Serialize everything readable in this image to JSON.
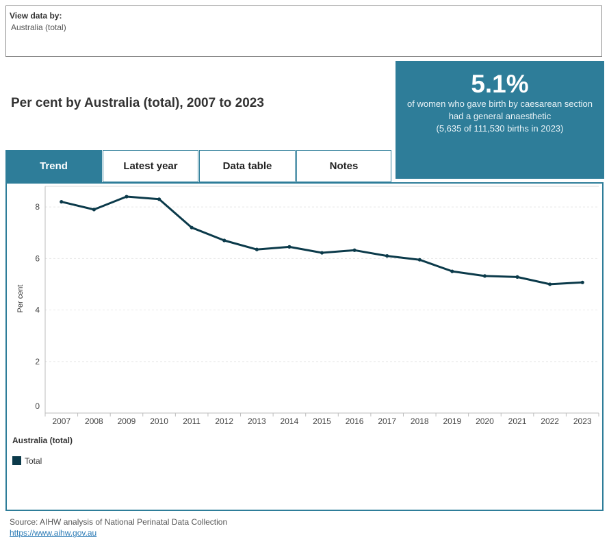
{
  "filter": {
    "label": "View data by:",
    "value": "Australia (total)"
  },
  "heading": "Per cent by Australia (total), 2007 to 2023",
  "kpi": {
    "value": "5.1%",
    "line1": "of women who gave birth by caesarean section",
    "line2": "had a general anaesthetic",
    "line3": "(5,635 of 111,530 births in 2023)",
    "background": "#2e7d99"
  },
  "tabs": [
    {
      "label": "Trend",
      "active": true
    },
    {
      "label": "Latest year",
      "active": false
    },
    {
      "label": "Data table",
      "active": false
    },
    {
      "label": "Notes",
      "active": false
    }
  ],
  "legend": {
    "title": "Australia (total)",
    "items": [
      {
        "label": "Total",
        "color": "#0b3a4a"
      }
    ]
  },
  "footer": {
    "source": "Source: AIHW analysis of National Perinatal Data Collection",
    "link": "https://www.aihw.gov.au"
  },
  "chart_data": {
    "type": "line",
    "title": "",
    "xlabel": "",
    "ylabel": "Per cent",
    "x": [
      "2007",
      "2008",
      "2009",
      "2010",
      "2011",
      "2012",
      "2013",
      "2014",
      "2015",
      "2016",
      "2017",
      "2018",
      "2019",
      "2020",
      "2021",
      "2022",
      "2023"
    ],
    "series": [
      {
        "name": "Total",
        "color": "#0b3a4a",
        "values": [
          8.2,
          7.9,
          8.4,
          8.3,
          7.2,
          6.7,
          6.35,
          6.45,
          6.22,
          6.32,
          6.1,
          5.95,
          5.5,
          5.32,
          5.28,
          5.0,
          5.07
        ]
      }
    ],
    "ylim": [
      0,
      8.8
    ],
    "yticks": [
      0,
      2,
      4,
      6,
      8
    ],
    "grid": true
  }
}
